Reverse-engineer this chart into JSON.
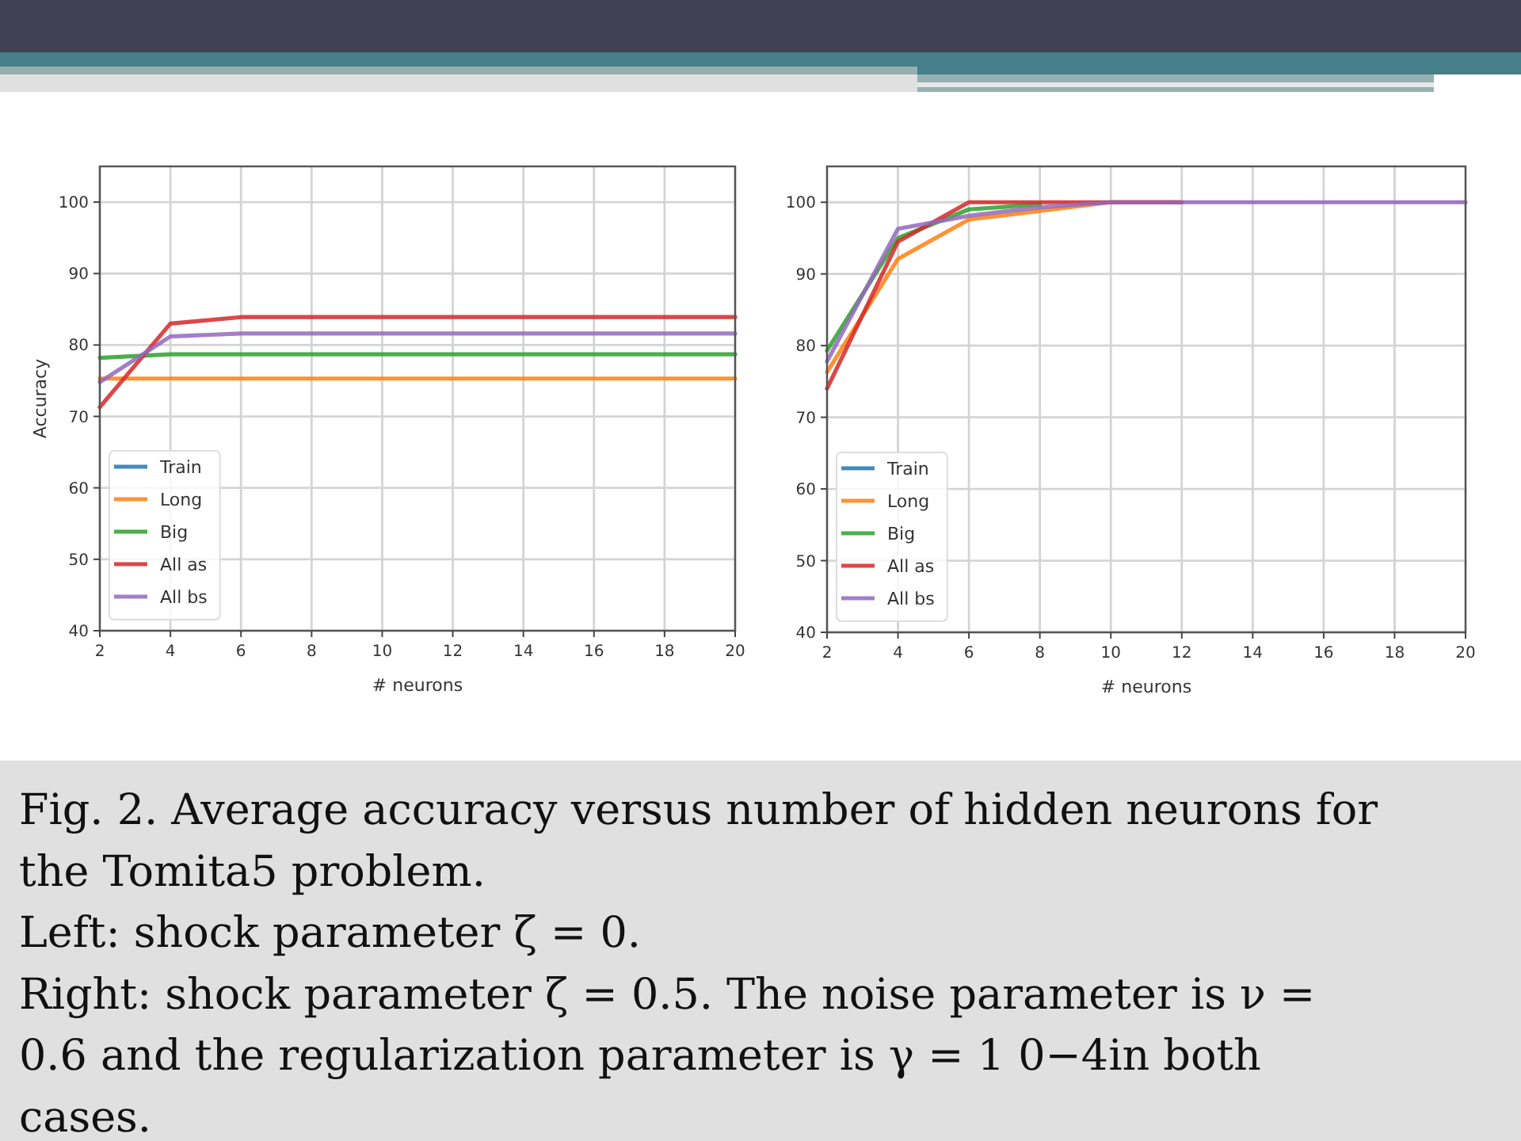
{
  "chart_data": [
    {
      "type": "line",
      "xlabel": "# neurons",
      "ylabel": "Accuracy",
      "x": [
        2,
        4,
        6,
        8,
        10,
        12,
        14,
        16,
        18,
        20
      ],
      "xlim": [
        2,
        20
      ],
      "xticks": [
        2,
        4,
        6,
        8,
        10,
        12,
        14,
        16,
        18,
        20
      ],
      "ylim": [
        40,
        105
      ],
      "yticks": [
        40,
        50,
        60,
        70,
        80,
        90,
        100
      ],
      "grid": true,
      "legend": "bottom left",
      "series": [
        {
          "name": "Train",
          "color": "#1f77b4",
          "values": [
            null,
            null,
            null,
            null,
            null,
            null,
            null,
            null,
            null,
            null
          ]
        },
        {
          "name": "Long",
          "color": "#ff7f0e",
          "values": [
            75.3,
            75.3,
            75.3,
            75.3,
            75.3,
            75.3,
            75.3,
            75.3,
            75.3,
            75.3
          ]
        },
        {
          "name": "Big",
          "color": "#2ca02c",
          "values": [
            78.2,
            78.7,
            78.7,
            78.7,
            78.7,
            78.7,
            78.7,
            78.7,
            78.7,
            78.7
          ]
        },
        {
          "name": "All as",
          "color": "#d62728",
          "values": [
            71.3,
            83.0,
            83.9,
            83.9,
            83.9,
            83.9,
            83.9,
            83.9,
            83.9,
            83.9
          ]
        },
        {
          "name": "All bs",
          "color": "#9467bd",
          "values": [
            74.8,
            81.2,
            81.6,
            81.6,
            81.6,
            81.6,
            81.6,
            81.6,
            81.6,
            81.6
          ]
        }
      ]
    },
    {
      "type": "line",
      "xlabel": "# neurons",
      "x": [
        2,
        4,
        6,
        8,
        10,
        12,
        14,
        16,
        18,
        20
      ],
      "xlim": [
        2,
        20
      ],
      "xticks": [
        2,
        4,
        6,
        8,
        10,
        12,
        14,
        16,
        18,
        20
      ],
      "ylim": [
        40,
        105
      ],
      "yticks": [
        40,
        50,
        60,
        70,
        80,
        90,
        100
      ],
      "grid": true,
      "legend": "bottom left",
      "series": [
        {
          "name": "Train",
          "color": "#1f77b4",
          "values": [
            null,
            null,
            null,
            null,
            null,
            null,
            null,
            null,
            null,
            null
          ]
        },
        {
          "name": "Long",
          "color": "#ff7f0e",
          "values": [
            76.3,
            92.1,
            97.6,
            98.8,
            100,
            100,
            null,
            null,
            null,
            null
          ]
        },
        {
          "name": "Big",
          "color": "#2ca02c",
          "values": [
            79.3,
            95.0,
            99.0,
            99.7,
            null,
            null,
            null,
            null,
            null,
            null
          ]
        },
        {
          "name": "All as",
          "color": "#d62728",
          "values": [
            74.0,
            94.5,
            100,
            100,
            100,
            100,
            null,
            null,
            null,
            null
          ]
        },
        {
          "name": "All bs",
          "color": "#9467bd",
          "values": [
            77.8,
            96.3,
            98.1,
            99.3,
            100,
            100,
            100,
            100,
            100,
            100
          ]
        }
      ],
      "annotations": [
        "Fig. 2. Average accuracy versus number of hidden neurons for the Tomita5 problem.",
        "Left: shock parameter ζ = 0.",
        "Right: shock parameter ζ = 0.5. The noise parameter is ν = 0.6 and the regularization parameter is γ = 1 0−4in both cases."
      ]
    }
  ]
}
